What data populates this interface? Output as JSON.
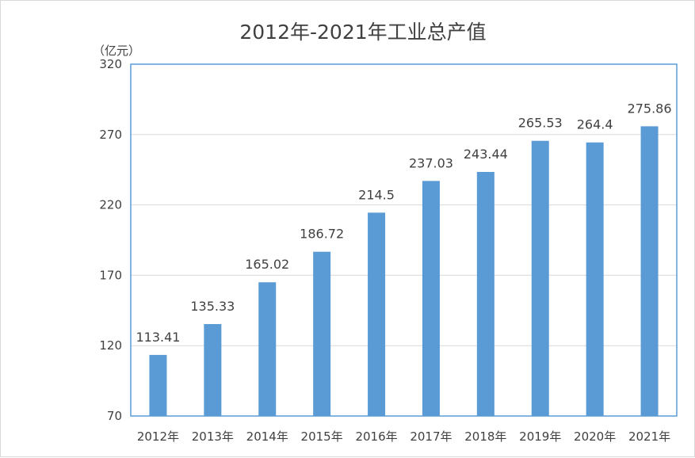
{
  "chart_data": {
    "type": "bar",
    "title": "2012年-2021年工业总产值",
    "ylabel": "（亿元）",
    "xlabel": "",
    "categories": [
      "2012年",
      "2013年",
      "2014年",
      "2015年",
      "2016年",
      "2017年",
      "2018年",
      "2019年",
      "2020年",
      "2021年"
    ],
    "values": [
      113.41,
      135.33,
      165.02,
      186.72,
      214.5,
      237.03,
      243.44,
      265.53,
      264.4,
      275.86
    ],
    "data_labels": [
      "113.41",
      "135.33",
      "165.02",
      "186.72",
      "214.5",
      "237.03",
      "243.44",
      "265.53",
      "264.4",
      "275.86"
    ],
    "ylim": [
      70,
      320
    ],
    "yticks": [
      "70",
      "120",
      "170",
      "220",
      "270",
      "320"
    ],
    "grid": true,
    "legend": "none",
    "colors": {
      "bar": "#5b9bd5",
      "plot_border": "#5b9bd5",
      "grid": "#d9d9d9",
      "text": "#404040"
    }
  }
}
